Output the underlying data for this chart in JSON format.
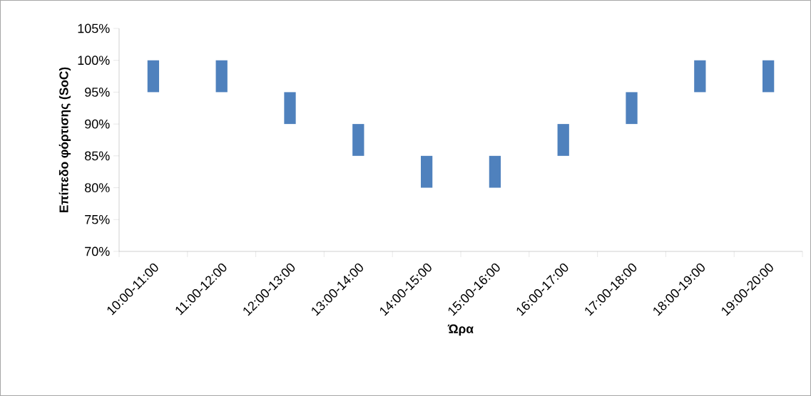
{
  "chart_data": {
    "type": "bar",
    "xlabel": "Ώρα",
    "ylabel": "Επίπεδο φόρτισης (SoC)",
    "categories": [
      "10:00-11:00",
      "11:00-12:00",
      "12:00-13:00",
      "13:00-14:00",
      "14:00-15:00",
      "15:00-16:00",
      "16:00-17:00",
      "17:00-18:00",
      "18:00-19:00",
      "19:00-20:00"
    ],
    "base": [
      95,
      95,
      90,
      85,
      80,
      80,
      85,
      90,
      95,
      95
    ],
    "values": [
      5,
      5,
      5,
      5,
      5,
      5,
      5,
      5,
      5,
      5
    ],
    "color": "#4f81bd",
    "ylim": [
      70,
      105
    ],
    "yticks": [
      {
        "value": 70,
        "label": "70%"
      },
      {
        "value": 75,
        "label": "75%"
      },
      {
        "value": 80,
        "label": "80%"
      },
      {
        "value": 85,
        "label": "85%"
      },
      {
        "value": 90,
        "label": "90%"
      },
      {
        "value": 95,
        "label": "95%"
      },
      {
        "value": 100,
        "label": "100%"
      },
      {
        "value": 105,
        "label": "105%"
      }
    ],
    "grid": false
  }
}
